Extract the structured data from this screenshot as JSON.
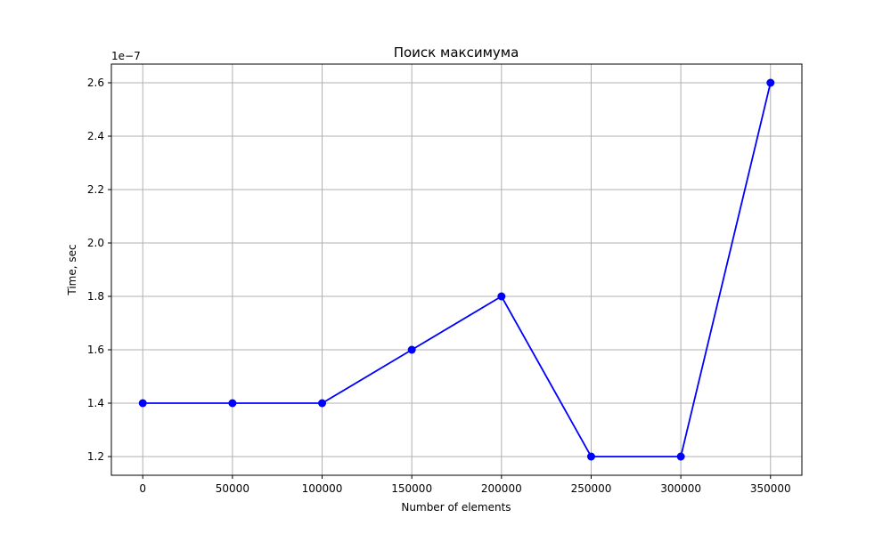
{
  "chart_data": {
    "type": "line",
    "title": "Поиск максимума",
    "xlabel": "Number of elements",
    "ylabel": "Time, sec",
    "y_offset_label": "1e−7",
    "x": [
      0,
      50000,
      100000,
      150000,
      200000,
      250000,
      300000,
      350000
    ],
    "series": [
      {
        "values": [
          1.4e-07,
          1.4e-07,
          1.4e-07,
          1.6e-07,
          1.8e-07,
          1.2e-07,
          1.2e-07,
          2.6e-07
        ],
        "color": "#0000ff",
        "marker": "circle"
      }
    ],
    "x_ticks": [
      0,
      50000,
      100000,
      150000,
      200000,
      250000,
      300000,
      350000
    ],
    "x_tick_labels": [
      "0",
      "50000",
      "100000",
      "150000",
      "200000",
      "250000",
      "300000",
      "350000"
    ],
    "y_ticks": [
      1.2,
      1.4,
      1.6,
      1.8,
      2.0,
      2.2,
      2.4,
      2.6
    ],
    "y_tick_labels": [
      "1.2",
      "1.4",
      "1.6",
      "1.8",
      "2.0",
      "2.2",
      "2.4",
      "2.6"
    ],
    "y_tick_scale": 1e-07,
    "xlim": [
      -17500,
      367500
    ],
    "ylim": [
      1.13e-07,
      2.67e-07
    ],
    "grid": true,
    "grid_color": "#b0b0b0"
  }
}
